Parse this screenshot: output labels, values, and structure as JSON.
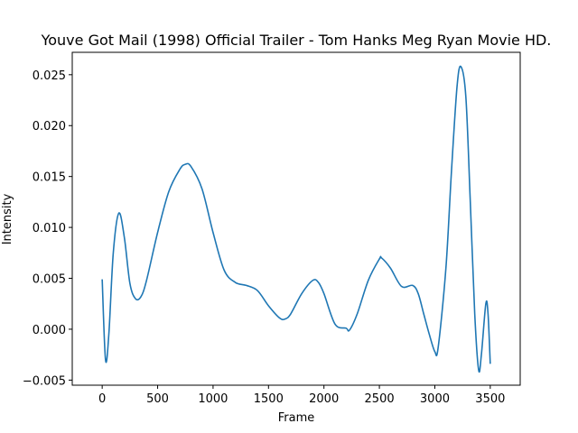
{
  "chart_data": {
    "type": "line",
    "title": "Youve Got Mail (1998) Official Trailer - Tom Hanks Meg Ryan Movie HD.",
    "xlabel": "Frame",
    "ylabel": "Intensity",
    "xlim": [
      -270,
      3770
    ],
    "ylim": [
      -0.0055,
      0.0272
    ],
    "xticks": [
      0,
      500,
      1000,
      1500,
      2000,
      2500,
      3000,
      3500
    ],
    "xtick_labels": [
      "0",
      "500",
      "1000",
      "1500",
      "2000",
      "2500",
      "3000",
      "3500"
    ],
    "yticks": [
      -0.005,
      0.0,
      0.005,
      0.01,
      0.015,
      0.02,
      0.025
    ],
    "ytick_labels": [
      "−0.005",
      "0.000",
      "0.005",
      "0.010",
      "0.015",
      "0.020",
      "0.025"
    ],
    "grid": false,
    "series": [
      {
        "color": "#1f77b4",
        "x": [
          0,
          30,
          60,
          100,
          150,
          200,
          250,
          300,
          350,
          400,
          500,
          600,
          700,
          750,
          800,
          900,
          1000,
          1100,
          1200,
          1300,
          1400,
          1500,
          1600,
          1650,
          1700,
          1800,
          1900,
          1950,
          2000,
          2100,
          2200,
          2230,
          2300,
          2400,
          2500,
          2520,
          2600,
          2700,
          2800,
          2850,
          2900,
          2950,
          3000,
          3030,
          3100,
          3150,
          3200,
          3235,
          3280,
          3320,
          3360,
          3395,
          3420,
          3460,
          3480,
          3500
        ],
        "y": [
          0.0049,
          -0.003,
          -0.0005,
          0.0075,
          0.0114,
          0.009,
          0.0045,
          0.003,
          0.0032,
          0.0048,
          0.0095,
          0.0135,
          0.0157,
          0.0162,
          0.016,
          0.0138,
          0.0095,
          0.0058,
          0.0046,
          0.0043,
          0.0038,
          0.0023,
          0.0011,
          0.001,
          0.0015,
          0.0035,
          0.0048,
          0.0046,
          0.0035,
          0.0005,
          0.0001,
          -0.0001,
          0.0015,
          0.0048,
          0.0069,
          0.007,
          0.006,
          0.0042,
          0.0043,
          0.0035,
          0.0015,
          -0.0005,
          -0.0022,
          -0.0018,
          0.006,
          0.0155,
          0.0238,
          0.0258,
          0.0228,
          0.0125,
          0.0015,
          -0.004,
          -0.0025,
          0.0025,
          0.0015,
          -0.0034
        ]
      }
    ]
  }
}
